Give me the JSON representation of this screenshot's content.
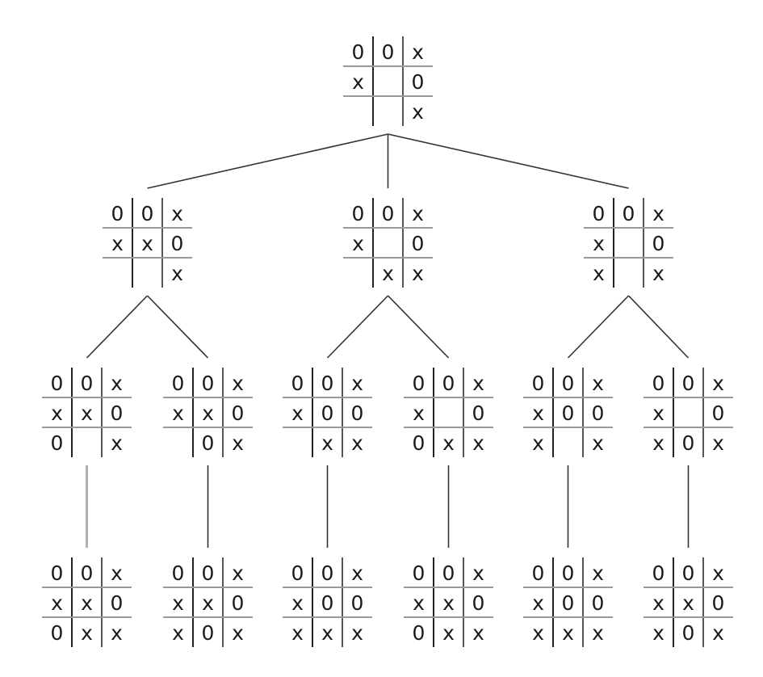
{
  "tree": {
    "nodes": [
      {
        "id": "root",
        "board": [
          [
            "0",
            "0",
            "x"
          ],
          [
            "x",
            "",
            "0"
          ],
          [
            "",
            "",
            "x"
          ]
        ]
      },
      {
        "id": "a",
        "parent": "root",
        "board": [
          [
            "0",
            "0",
            "x"
          ],
          [
            "x",
            "x",
            "0"
          ],
          [
            "",
            "",
            "x"
          ]
        ]
      },
      {
        "id": "b",
        "parent": "root",
        "board": [
          [
            "0",
            "0",
            "x"
          ],
          [
            "x",
            "",
            "0"
          ],
          [
            "",
            "x",
            "x"
          ]
        ]
      },
      {
        "id": "c",
        "parent": "root",
        "board": [
          [
            "0",
            "0",
            "x"
          ],
          [
            "x",
            "",
            "0"
          ],
          [
            "x",
            "",
            "x"
          ]
        ]
      },
      {
        "id": "a1",
        "parent": "a",
        "board": [
          [
            "0",
            "0",
            "x"
          ],
          [
            "x",
            "x",
            "0"
          ],
          [
            "0",
            "",
            "x"
          ]
        ]
      },
      {
        "id": "a2",
        "parent": "a",
        "board": [
          [
            "0",
            "0",
            "x"
          ],
          [
            "x",
            "x",
            "0"
          ],
          [
            "",
            "0",
            "x"
          ]
        ]
      },
      {
        "id": "b1",
        "parent": "b",
        "board": [
          [
            "0",
            "0",
            "x"
          ],
          [
            "x",
            "0",
            "0"
          ],
          [
            "",
            "x",
            "x"
          ]
        ]
      },
      {
        "id": "b2",
        "parent": "b",
        "board": [
          [
            "0",
            "0",
            "x"
          ],
          [
            "x",
            "",
            "0"
          ],
          [
            "0",
            "x",
            "x"
          ]
        ]
      },
      {
        "id": "c1",
        "parent": "c",
        "board": [
          [
            "0",
            "0",
            "x"
          ],
          [
            "x",
            "0",
            "0"
          ],
          [
            "x",
            "",
            "x"
          ]
        ]
      },
      {
        "id": "c2",
        "parent": "c",
        "board": [
          [
            "0",
            "0",
            "x"
          ],
          [
            "x",
            "",
            "0"
          ],
          [
            "x",
            "0",
            "x"
          ]
        ]
      },
      {
        "id": "a1x",
        "parent": "a1",
        "board": [
          [
            "0",
            "0",
            "x"
          ],
          [
            "x",
            "x",
            "0"
          ],
          [
            "0",
            "x",
            "x"
          ]
        ]
      },
      {
        "id": "a2x",
        "parent": "a2",
        "board": [
          [
            "0",
            "0",
            "x"
          ],
          [
            "x",
            "x",
            "0"
          ],
          [
            "x",
            "0",
            "x"
          ]
        ]
      },
      {
        "id": "b1x",
        "parent": "b1",
        "board": [
          [
            "0",
            "0",
            "x"
          ],
          [
            "x",
            "0",
            "0"
          ],
          [
            "x",
            "x",
            "x"
          ]
        ]
      },
      {
        "id": "b2x",
        "parent": "b2",
        "board": [
          [
            "0",
            "0",
            "x"
          ],
          [
            "x",
            "x",
            "0"
          ],
          [
            "0",
            "x",
            "x"
          ]
        ]
      },
      {
        "id": "c1x",
        "parent": "c1",
        "board": [
          [
            "0",
            "0",
            "x"
          ],
          [
            "x",
            "0",
            "0"
          ],
          [
            "x",
            "x",
            "x"
          ]
        ]
      },
      {
        "id": "c2x",
        "parent": "c2",
        "board": [
          [
            "0",
            "0",
            "x"
          ],
          [
            "x",
            "x",
            "0"
          ],
          [
            "x",
            "0",
            "x"
          ]
        ]
      }
    ]
  }
}
